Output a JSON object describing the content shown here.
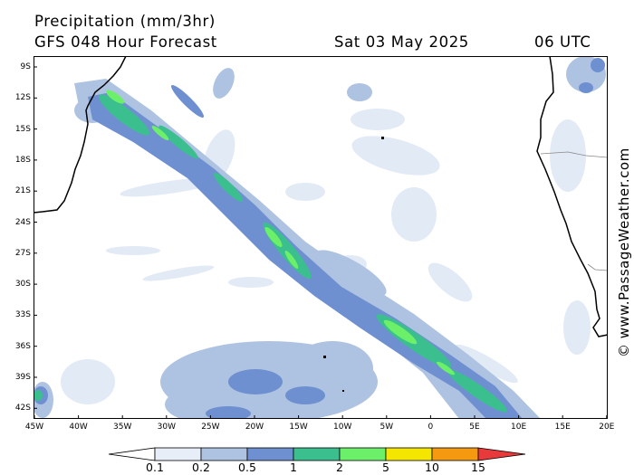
{
  "header": {
    "title": "Precipitation (mm/3hr)",
    "subtitle": "GFS 048 Hour Forecast",
    "date": "Sat 03 May 2025",
    "time": "06 UTC"
  },
  "credit": "© www.PassageWeather.com",
  "axes": {
    "lat_labels": [
      "9S",
      "12S",
      "15S",
      "18S",
      "21S",
      "24S",
      "27S",
      "30S",
      "33S",
      "36S",
      "39S",
      "42S"
    ],
    "lon_labels": [
      "45W",
      "40W",
      "35W",
      "30W",
      "25W",
      "20W",
      "15W",
      "10W",
      "5W",
      "0",
      "5E",
      "10E",
      "15E",
      "20E"
    ],
    "lat_range": [
      -9,
      -42
    ],
    "lon_range": [
      -45,
      20
    ]
  },
  "legend": {
    "labels": [
      "0.1",
      "0.2",
      "0.5",
      "1",
      "2",
      "5",
      "10",
      "15"
    ],
    "colors": [
      "#ffffff",
      "#e8eef8",
      "#aec2e2",
      "#6e90d0",
      "#3cbf8e",
      "#6cf06a",
      "#f5e600",
      "#f59a10",
      "#e83a3a"
    ]
  },
  "colors": {
    "very_light": "#e2eaf6",
    "light": "#aec2e2",
    "medium": "#6e90d0",
    "teal": "#3cbf8e",
    "green": "#6cf06a",
    "land_border": "#000000"
  }
}
